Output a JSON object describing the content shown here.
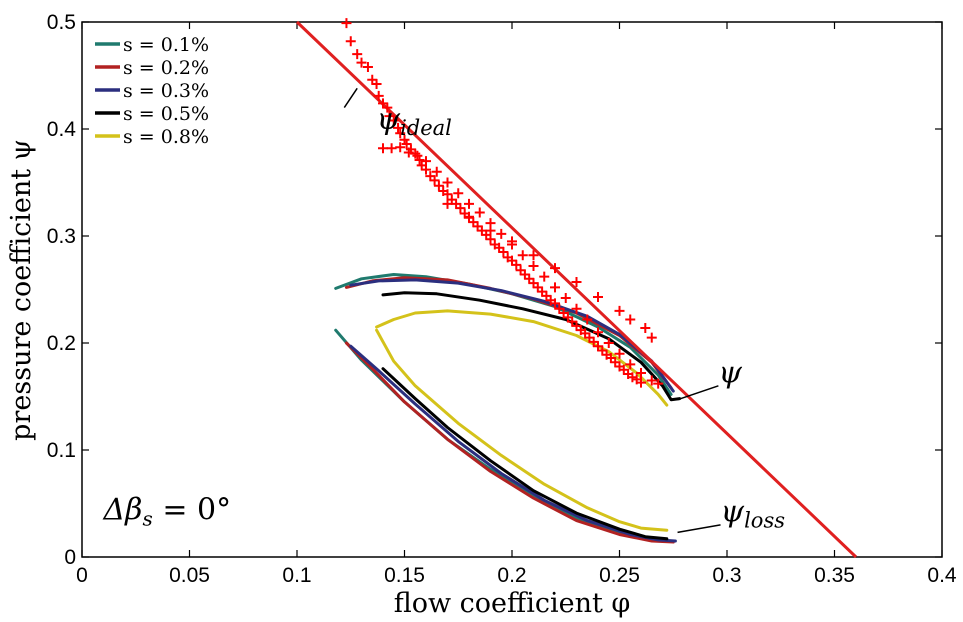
{
  "chart_data": {
    "type": "line",
    "xlabel": "flow coefficient φ",
    "ylabel": "pressure coefficient ψ",
    "xlim": [
      0,
      0.4
    ],
    "ylim": [
      0,
      0.5
    ],
    "x_ticks": [
      "0",
      "0.05",
      "0.1",
      "0.15",
      "0.2",
      "0.25",
      "0.3",
      "0.35",
      "0.4"
    ],
    "y_ticks": [
      "0",
      "0.1",
      "0.2",
      "0.3",
      "0.4",
      "0.5"
    ],
    "grid": false,
    "legend_position": "top-left",
    "series": [
      {
        "name": "s = 0.1%",
        "color": "#1f7a6e",
        "psi": [
          [
            0.118,
            0.251
          ],
          [
            0.13,
            0.26
          ],
          [
            0.145,
            0.264
          ],
          [
            0.16,
            0.262
          ],
          [
            0.18,
            0.255
          ],
          [
            0.2,
            0.246
          ],
          [
            0.22,
            0.234
          ],
          [
            0.24,
            0.215
          ],
          [
            0.255,
            0.196
          ],
          [
            0.268,
            0.17
          ],
          [
            0.274,
            0.152
          ]
        ],
        "psi_loss": [
          [
            0.118,
            0.212
          ],
          [
            0.13,
            0.184
          ],
          [
            0.15,
            0.145
          ],
          [
            0.17,
            0.11
          ],
          [
            0.19,
            0.082
          ],
          [
            0.21,
            0.057
          ],
          [
            0.23,
            0.036
          ],
          [
            0.25,
            0.022
          ],
          [
            0.265,
            0.016
          ],
          [
            0.274,
            0.015
          ]
        ]
      },
      {
        "name": "s = 0.2%",
        "color": "#b22222",
        "psi": [
          [
            0.123,
            0.252
          ],
          [
            0.135,
            0.258
          ],
          [
            0.15,
            0.261
          ],
          [
            0.17,
            0.259
          ],
          [
            0.19,
            0.251
          ],
          [
            0.21,
            0.241
          ],
          [
            0.23,
            0.228
          ],
          [
            0.25,
            0.207
          ],
          [
            0.265,
            0.182
          ],
          [
            0.274,
            0.158
          ]
        ],
        "psi_loss": [
          [
            0.123,
            0.2
          ],
          [
            0.135,
            0.176
          ],
          [
            0.15,
            0.145
          ],
          [
            0.17,
            0.11
          ],
          [
            0.19,
            0.08
          ],
          [
            0.21,
            0.055
          ],
          [
            0.23,
            0.034
          ],
          [
            0.25,
            0.021
          ],
          [
            0.265,
            0.015
          ],
          [
            0.275,
            0.014
          ]
        ]
      },
      {
        "name": "s = 0.3%",
        "color": "#2b2f7f",
        "psi": [
          [
            0.125,
            0.254
          ],
          [
            0.138,
            0.258
          ],
          [
            0.155,
            0.259
          ],
          [
            0.175,
            0.256
          ],
          [
            0.195,
            0.249
          ],
          [
            0.215,
            0.239
          ],
          [
            0.235,
            0.225
          ],
          [
            0.25,
            0.208
          ],
          [
            0.265,
            0.183
          ],
          [
            0.275,
            0.155
          ]
        ],
        "psi_loss": [
          [
            0.125,
            0.197
          ],
          [
            0.138,
            0.174
          ],
          [
            0.155,
            0.143
          ],
          [
            0.175,
            0.108
          ],
          [
            0.195,
            0.078
          ],
          [
            0.215,
            0.053
          ],
          [
            0.235,
            0.034
          ],
          [
            0.255,
            0.021
          ],
          [
            0.268,
            0.016
          ],
          [
            0.276,
            0.015
          ]
        ]
      },
      {
        "name": "s = 0.5%",
        "color": "#000000",
        "psi": [
          [
            0.14,
            0.245
          ],
          [
            0.15,
            0.247
          ],
          [
            0.165,
            0.246
          ],
          [
            0.185,
            0.24
          ],
          [
            0.205,
            0.232
          ],
          [
            0.225,
            0.222
          ],
          [
            0.245,
            0.204
          ],
          [
            0.26,
            0.182
          ],
          [
            0.27,
            0.16
          ],
          [
            0.274,
            0.147
          ],
          [
            0.278,
            0.148
          ]
        ],
        "psi_loss": [
          [
            0.14,
            0.176
          ],
          [
            0.155,
            0.148
          ],
          [
            0.17,
            0.121
          ],
          [
            0.19,
            0.09
          ],
          [
            0.21,
            0.062
          ],
          [
            0.23,
            0.041
          ],
          [
            0.25,
            0.026
          ],
          [
            0.262,
            0.019
          ],
          [
            0.272,
            0.017
          ]
        ]
      },
      {
        "name": "s = 0.8%",
        "color": "#d4c21a",
        "psi": [
          [
            0.137,
            0.215
          ],
          [
            0.145,
            0.222
          ],
          [
            0.155,
            0.228
          ],
          [
            0.17,
            0.23
          ],
          [
            0.19,
            0.227
          ],
          [
            0.21,
            0.22
          ],
          [
            0.23,
            0.207
          ],
          [
            0.245,
            0.192
          ],
          [
            0.258,
            0.172
          ],
          [
            0.268,
            0.152
          ],
          [
            0.272,
            0.142
          ]
        ],
        "psi_loss": [
          [
            0.137,
            0.212
          ],
          [
            0.145,
            0.183
          ],
          [
            0.155,
            0.16
          ],
          [
            0.175,
            0.125
          ],
          [
            0.195,
            0.095
          ],
          [
            0.215,
            0.068
          ],
          [
            0.235,
            0.046
          ],
          [
            0.25,
            0.033
          ],
          [
            0.26,
            0.027
          ],
          [
            0.272,
            0.025
          ]
        ]
      }
    ],
    "ideal_line": {
      "color": "#e02020",
      "points": [
        [
          0.1,
          0.5
        ],
        [
          0.36,
          0.0
        ]
      ]
    },
    "markers": {
      "symbol": "+",
      "color": "#ff0000",
      "points": [
        [
          0.123,
          0.499
        ],
        [
          0.125,
          0.482
        ],
        [
          0.128,
          0.47
        ],
        [
          0.13,
          0.462
        ],
        [
          0.133,
          0.458
        ],
        [
          0.135,
          0.446
        ],
        [
          0.137,
          0.442
        ],
        [
          0.138,
          0.431
        ],
        [
          0.14,
          0.424
        ],
        [
          0.142,
          0.42
        ],
        [
          0.143,
          0.412
        ],
        [
          0.145,
          0.408
        ],
        [
          0.147,
          0.401
        ],
        [
          0.148,
          0.396
        ],
        [
          0.15,
          0.39
        ],
        [
          0.151,
          0.386
        ],
        [
          0.153,
          0.381
        ],
        [
          0.155,
          0.377
        ],
        [
          0.157,
          0.371
        ],
        [
          0.158,
          0.366
        ],
        [
          0.16,
          0.362
        ],
        [
          0.162,
          0.356
        ],
        [
          0.164,
          0.352
        ],
        [
          0.166,
          0.347
        ],
        [
          0.168,
          0.342
        ],
        [
          0.17,
          0.339
        ],
        [
          0.172,
          0.334
        ],
        [
          0.174,
          0.33
        ],
        [
          0.176,
          0.326
        ],
        [
          0.178,
          0.321
        ],
        [
          0.18,
          0.317
        ],
        [
          0.182,
          0.313
        ],
        [
          0.184,
          0.309
        ],
        [
          0.186,
          0.305
        ],
        [
          0.188,
          0.301
        ],
        [
          0.19,
          0.297
        ],
        [
          0.192,
          0.292
        ],
        [
          0.194,
          0.289
        ],
        [
          0.196,
          0.285
        ],
        [
          0.198,
          0.28
        ],
        [
          0.2,
          0.277
        ],
        [
          0.202,
          0.273
        ],
        [
          0.204,
          0.268
        ],
        [
          0.206,
          0.264
        ],
        [
          0.208,
          0.26
        ],
        [
          0.21,
          0.256
        ],
        [
          0.212,
          0.252
        ],
        [
          0.214,
          0.248
        ],
        [
          0.216,
          0.244
        ],
        [
          0.218,
          0.24
        ],
        [
          0.22,
          0.237
        ],
        [
          0.222,
          0.232
        ],
        [
          0.224,
          0.228
        ],
        [
          0.226,
          0.224
        ],
        [
          0.228,
          0.22
        ],
        [
          0.23,
          0.216
        ],
        [
          0.232,
          0.212
        ],
        [
          0.234,
          0.209
        ],
        [
          0.236,
          0.205
        ],
        [
          0.238,
          0.201
        ],
        [
          0.24,
          0.197
        ],
        [
          0.242,
          0.193
        ],
        [
          0.244,
          0.189
        ],
        [
          0.246,
          0.186
        ],
        [
          0.248,
          0.182
        ],
        [
          0.25,
          0.178
        ],
        [
          0.252,
          0.175
        ],
        [
          0.254,
          0.171
        ],
        [
          0.256,
          0.168
        ],
        [
          0.258,
          0.166
        ],
        [
          0.26,
          0.163
        ],
        [
          0.14,
          0.382
        ],
        [
          0.144,
          0.382
        ],
        [
          0.148,
          0.383
        ],
        [
          0.152,
          0.378
        ],
        [
          0.156,
          0.375
        ],
        [
          0.16,
          0.37
        ],
        [
          0.165,
          0.36
        ],
        [
          0.17,
          0.35
        ],
        [
          0.175,
          0.34
        ],
        [
          0.18,
          0.33
        ],
        [
          0.185,
          0.322
        ],
        [
          0.19,
          0.312
        ],
        [
          0.195,
          0.302
        ],
        [
          0.2,
          0.292
        ],
        [
          0.205,
          0.282
        ],
        [
          0.21,
          0.272
        ],
        [
          0.215,
          0.262
        ],
        [
          0.22,
          0.252
        ],
        [
          0.225,
          0.242
        ],
        [
          0.23,
          0.232
        ],
        [
          0.235,
          0.222
        ],
        [
          0.24,
          0.21
        ],
        [
          0.245,
          0.2
        ],
        [
          0.25,
          0.19
        ],
        [
          0.255,
          0.18
        ],
        [
          0.26,
          0.172
        ],
        [
          0.265,
          0.165
        ],
        [
          0.268,
          0.162
        ],
        [
          0.17,
          0.33
        ],
        [
          0.18,
          0.318
        ],
        [
          0.19,
          0.305
        ],
        [
          0.2,
          0.295
        ],
        [
          0.21,
          0.282
        ],
        [
          0.22,
          0.27
        ],
        [
          0.23,
          0.257
        ],
        [
          0.24,
          0.243
        ],
        [
          0.25,
          0.23
        ],
        [
          0.255,
          0.222
        ],
        [
          0.262,
          0.214
        ],
        [
          0.265,
          0.205
        ]
      ]
    },
    "annotations": [
      {
        "base": "ψ",
        "sub": "ideal",
        "x": 0.137,
        "y": 0.4
      },
      {
        "base": "ψ",
        "sub": "",
        "x": 0.296,
        "y": 0.163
      },
      {
        "base": "ψ",
        "sub": "loss",
        "x": 0.297,
        "y": 0.033
      },
      {
        "base": "Δβ",
        "sub": "s",
        "suffix": " = 0°",
        "x": 0.01,
        "y": 0.035
      }
    ]
  }
}
